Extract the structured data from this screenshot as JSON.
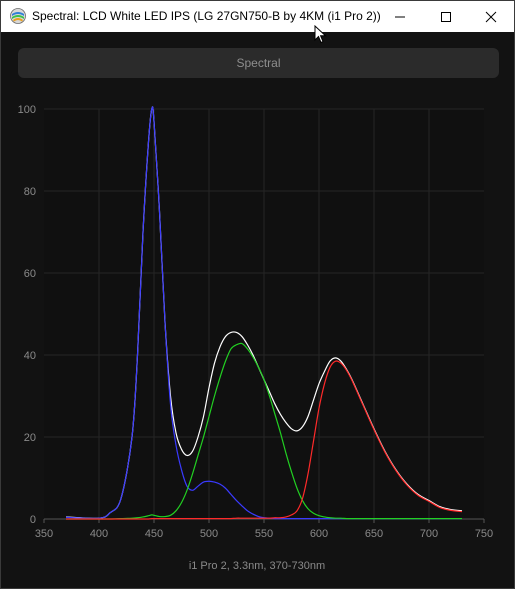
{
  "window": {
    "title": "Spectral: LCD White LED IPS (LG 27GN750-B by 4KM (i1 Pro 2))",
    "icons": {
      "app": "spectral-app-icon",
      "minimize": "minimize-icon",
      "maximize": "maximize-icon",
      "close": "close-icon"
    }
  },
  "toolbar": {
    "mode_label": "Spectral"
  },
  "chart_data": {
    "type": "line",
    "title": "",
    "xlabel": "i1 Pro 2, 3.3nm, 370-730nm",
    "ylabel": "",
    "xlim": [
      350,
      750
    ],
    "ylim": [
      0,
      100
    ],
    "x_ticks": [
      "350",
      "400",
      "450",
      "500",
      "550",
      "600",
      "650",
      "700",
      "750"
    ],
    "y_ticks": [
      "0",
      "20",
      "40",
      "60",
      "80",
      "100"
    ],
    "grid": true,
    "legend": "none",
    "x": [
      370,
      400,
      410,
      420,
      430,
      435,
      440,
      445,
      448,
      450,
      455,
      460,
      465,
      470,
      475,
      480,
      485,
      490,
      495,
      500,
      505,
      510,
      515,
      520,
      525,
      530,
      535,
      540,
      545,
      550,
      555,
      560,
      565,
      570,
      575,
      580,
      585,
      590,
      595,
      600,
      605,
      610,
      615,
      620,
      625,
      630,
      640,
      650,
      660,
      670,
      680,
      690,
      700,
      710,
      720,
      730
    ],
    "series": [
      {
        "color": "#ffffff",
        "values": [
          0.5,
          0.2,
          1.5,
          5,
          20,
          40,
          70,
          92,
          100,
          97,
          75,
          48,
          30,
          21,
          17,
          15.5,
          16.5,
          20,
          25,
          32,
          38,
          42,
          44.5,
          45.5,
          45.5,
          44.5,
          42.5,
          40,
          37,
          34,
          31,
          28,
          25.5,
          23.5,
          22,
          21.5,
          22.5,
          25,
          29,
          33,
          36,
          38.5,
          39.3,
          38.5,
          36.5,
          34,
          28,
          22,
          16.5,
          12,
          8.5,
          6,
          4.5,
          3,
          2.3,
          2
        ]
      },
      {
        "color": "#3a3aff",
        "values": [
          0.4,
          0.2,
          1.5,
          5,
          20,
          40,
          70,
          92,
          100,
          97,
          75,
          48,
          28,
          18,
          12,
          8,
          7,
          8,
          9,
          9.2,
          9,
          8.5,
          7.5,
          6,
          4.5,
          3.2,
          2,
          1.2,
          0.6,
          0.3,
          0.2,
          0.1,
          0.1,
          0.1,
          0.1,
          0.1,
          0.1,
          0.1,
          0.1,
          0.1,
          0.1,
          0.1,
          0.1,
          0.1,
          0.1,
          0.1,
          0.1,
          0.1,
          0.1,
          0.1,
          0.1,
          0.1,
          0.1,
          0.1,
          0.1,
          0.1
        ]
      },
      {
        "color": "#22d022",
        "values": [
          0,
          0,
          0,
          0.1,
          0.2,
          0.3,
          0.5,
          0.8,
          1,
          0.9,
          0.6,
          0.6,
          0.9,
          2,
          4,
          7,
          11,
          15.5,
          20,
          25,
          30,
          34.5,
          38.5,
          41.5,
          42.5,
          42.8,
          41.5,
          39.5,
          37,
          34,
          30,
          25.5,
          21,
          16,
          11.5,
          7.5,
          4.5,
          2.5,
          1.4,
          0.8,
          0.5,
          0.3,
          0.2,
          0.2,
          0.1,
          0.1,
          0.1,
          0.1,
          0.1,
          0.1,
          0.1,
          0.1,
          0.1,
          0.1,
          0.1,
          0.1
        ]
      },
      {
        "color": "#ff2a2a",
        "values": [
          0,
          0,
          0,
          0,
          0,
          0,
          0,
          0,
          0.1,
          0.1,
          0.1,
          0.1,
          0.1,
          0.1,
          0.1,
          0.1,
          0.1,
          0.1,
          0.1,
          0.1,
          0.1,
          0.1,
          0.1,
          0.1,
          0.2,
          0.2,
          0.2,
          0.2,
          0.2,
          0.2,
          0.2,
          0.3,
          0.3,
          0.5,
          1,
          2,
          5,
          11,
          19,
          27,
          33,
          37,
          38.5,
          38,
          36.3,
          33.8,
          27.8,
          21.8,
          16.3,
          11.8,
          8.3,
          5.8,
          4.3,
          2.8,
          2.1,
          1.8
        ]
      }
    ]
  }
}
